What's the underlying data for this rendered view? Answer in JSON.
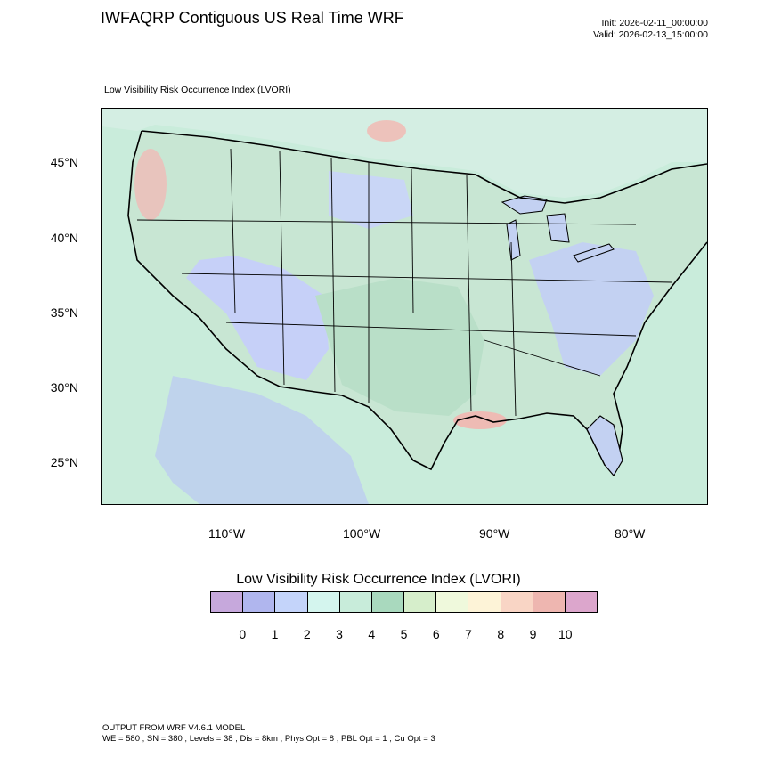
{
  "header": {
    "title": "IWFAQRP Contiguous US Real Time WRF",
    "init": "Init: 2026-02-11_00:00:00",
    "valid": "Valid: 2026-02-13_15:00:00"
  },
  "plot_label": "Low Visibility Risk Occurrence Index   (LVORI)",
  "map": {
    "latitude_labels": [
      "45°N",
      "40°N",
      "35°N",
      "30°N",
      "25°N"
    ],
    "longitude_labels": [
      "110°W",
      "100°W",
      "90°W",
      "80°W"
    ],
    "field_colors": {
      "ocean": "#c9ecdb",
      "land_base": "#cfe9d9",
      "low_index_west": "#c6d0f8",
      "low_index_east": "#c3d1f2",
      "mid_index": "#b9dfc8",
      "high_index": "#eebbb4",
      "border": "#000000"
    }
  },
  "colorbar": {
    "title": "Low Visibility Risk Occurrence Index  (LVORI)",
    "colors": [
      "#c6a8dc",
      "#b0b6ee",
      "#c4d4fa",
      "#d4f5ee",
      "#c8ecda",
      "#a9d9be",
      "#d6eecb",
      "#eff9dc",
      "#fdf3d7",
      "#f9d5c5",
      "#eeb6b0",
      "#dca6cc"
    ],
    "ticks": [
      "0",
      "1",
      "2",
      "3",
      "4",
      "5",
      "6",
      "7",
      "8",
      "9",
      "10"
    ]
  },
  "footer": {
    "line1": "OUTPUT FROM WRF V4.6.1 MODEL",
    "line2": "WE = 580 ; SN = 380 ; Levels = 38 ; Dis = 8km ; Phys Opt = 8 ; PBL Opt = 1 ; Cu Opt = 3"
  }
}
